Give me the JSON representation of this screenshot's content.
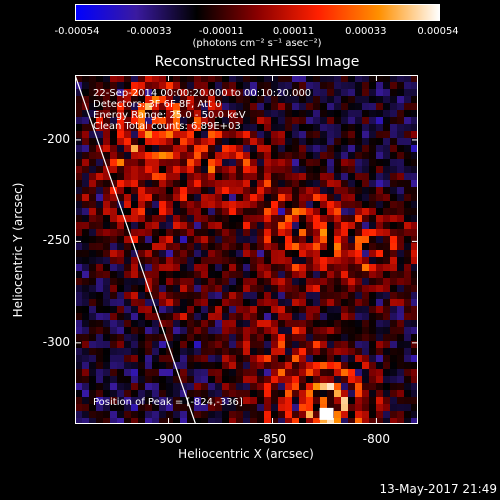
{
  "colorbar": {
    "ticks": [
      "-0.00054",
      "-0.00033",
      "-0.00011",
      "0.00011",
      "0.00033",
      "0.00054"
    ],
    "units": "(photons cm⁻² s⁻¹ asec⁻²)",
    "range": [
      -0.00054,
      0.00054
    ],
    "colormap": [
      "#0000ff",
      "#3a1aa0",
      "#000000",
      "#8a0000",
      "#ff2000",
      "#ff9000",
      "#ffffff"
    ]
  },
  "chart_data": {
    "type": "heatmap",
    "title": "Reconstructed RHESSI Image",
    "xlabel": "Heliocentric X (arcsec)",
    "ylabel": "Heliocentric Y (arcsec)",
    "xlim": [
      -945,
      -780
    ],
    "ylim": [
      -340,
      -168
    ],
    "xticks": [
      "-900",
      "-850",
      "-800"
    ],
    "yticks": [
      "-200",
      "-250",
      "-300"
    ],
    "annotations": [
      "22-Sep-2014 00:00:20.000 to 00:10:20.000",
      "Detectors: 3F 6F 8F, Att 0",
      "Energy Range: 25.0 - 50.0 keV",
      "Clean    Total counts: 6.89E+03"
    ],
    "peak_label": "Position of Peak = [-824,-336]",
    "peak": [
      -824,
      -336
    ],
    "limb_line": [
      [
        -945,
        -168
      ],
      [
        -887,
        -340
      ]
    ],
    "bright_regions": [
      {
        "x": -905,
        "y": -190,
        "intensity": 0.9
      },
      {
        "x": -870,
        "y": -215,
        "intensity": 0.6
      },
      {
        "x": -835,
        "y": -245,
        "intensity": 0.7
      },
      {
        "x": -800,
        "y": -255,
        "intensity": 0.55
      },
      {
        "x": -855,
        "y": -300,
        "intensity": 0.45
      },
      {
        "x": -920,
        "y": -230,
        "intensity": 0.5
      },
      {
        "x": -825,
        "y": -330,
        "intensity": 1.0
      },
      {
        "x": -900,
        "y": -270,
        "intensity": 0.35
      }
    ]
  },
  "footer": "13-May-2017 21:49"
}
